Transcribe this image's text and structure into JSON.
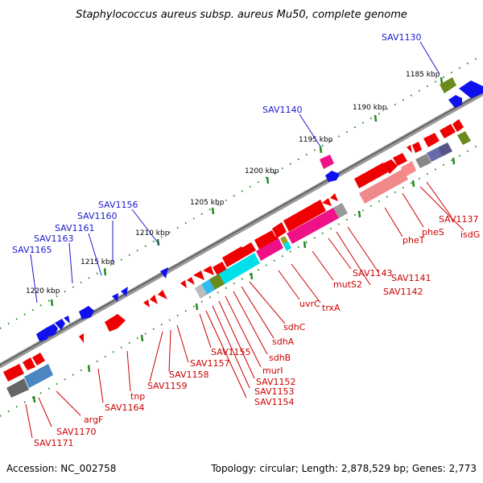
{
  "title": "Staphylococcus aureus subsp. aureus Mu50, complete genome",
  "accession": "Accession: NC_002758",
  "summary": "Topology: circular; Length: 2,878,529 bp; Genes: 2,773",
  "ticks": [
    "1185 kbp",
    "1190 kbp",
    "1195 kbp",
    "1200 kbp",
    "1205 kbp",
    "1210 kbp",
    "1215 kbp",
    "1220 kbp"
  ],
  "top_labels": [
    "SAV1130",
    "SAV1140",
    "SAV1156",
    "SAV1160",
    "SAV1161",
    "SAV1163",
    "SAV1165"
  ],
  "bottom_labels": [
    "SAV1137",
    "isdG",
    "pheS",
    "pheT",
    "SAV1141",
    "SAV1142",
    "SAV1143",
    "mutS2",
    "trxA",
    "uvrC",
    "sdhC",
    "sdhA",
    "sdhB",
    "murI",
    "SAV1152",
    "SAV1153",
    "SAV1154",
    "SAV1155",
    "SAV1157",
    "SAV1158",
    "SAV1159",
    "tnp",
    "SAV1164",
    "argF",
    "SAV1170",
    "SAV1171"
  ],
  "colors": {
    "forward_gene": "#ee0000",
    "reverse_gene": "#1010ee",
    "backbone": "#808080",
    "tick_mark": "#228822",
    "label_blue": "#1a1acc",
    "label_red": "#cc0000",
    "rna_pink": "#ff66aa",
    "cyan": "#00e0e8",
    "olive": "#7a9a2a",
    "gray_box": "#888888",
    "steel_blue": "#4a86c0",
    "slate": "#555588"
  }
}
